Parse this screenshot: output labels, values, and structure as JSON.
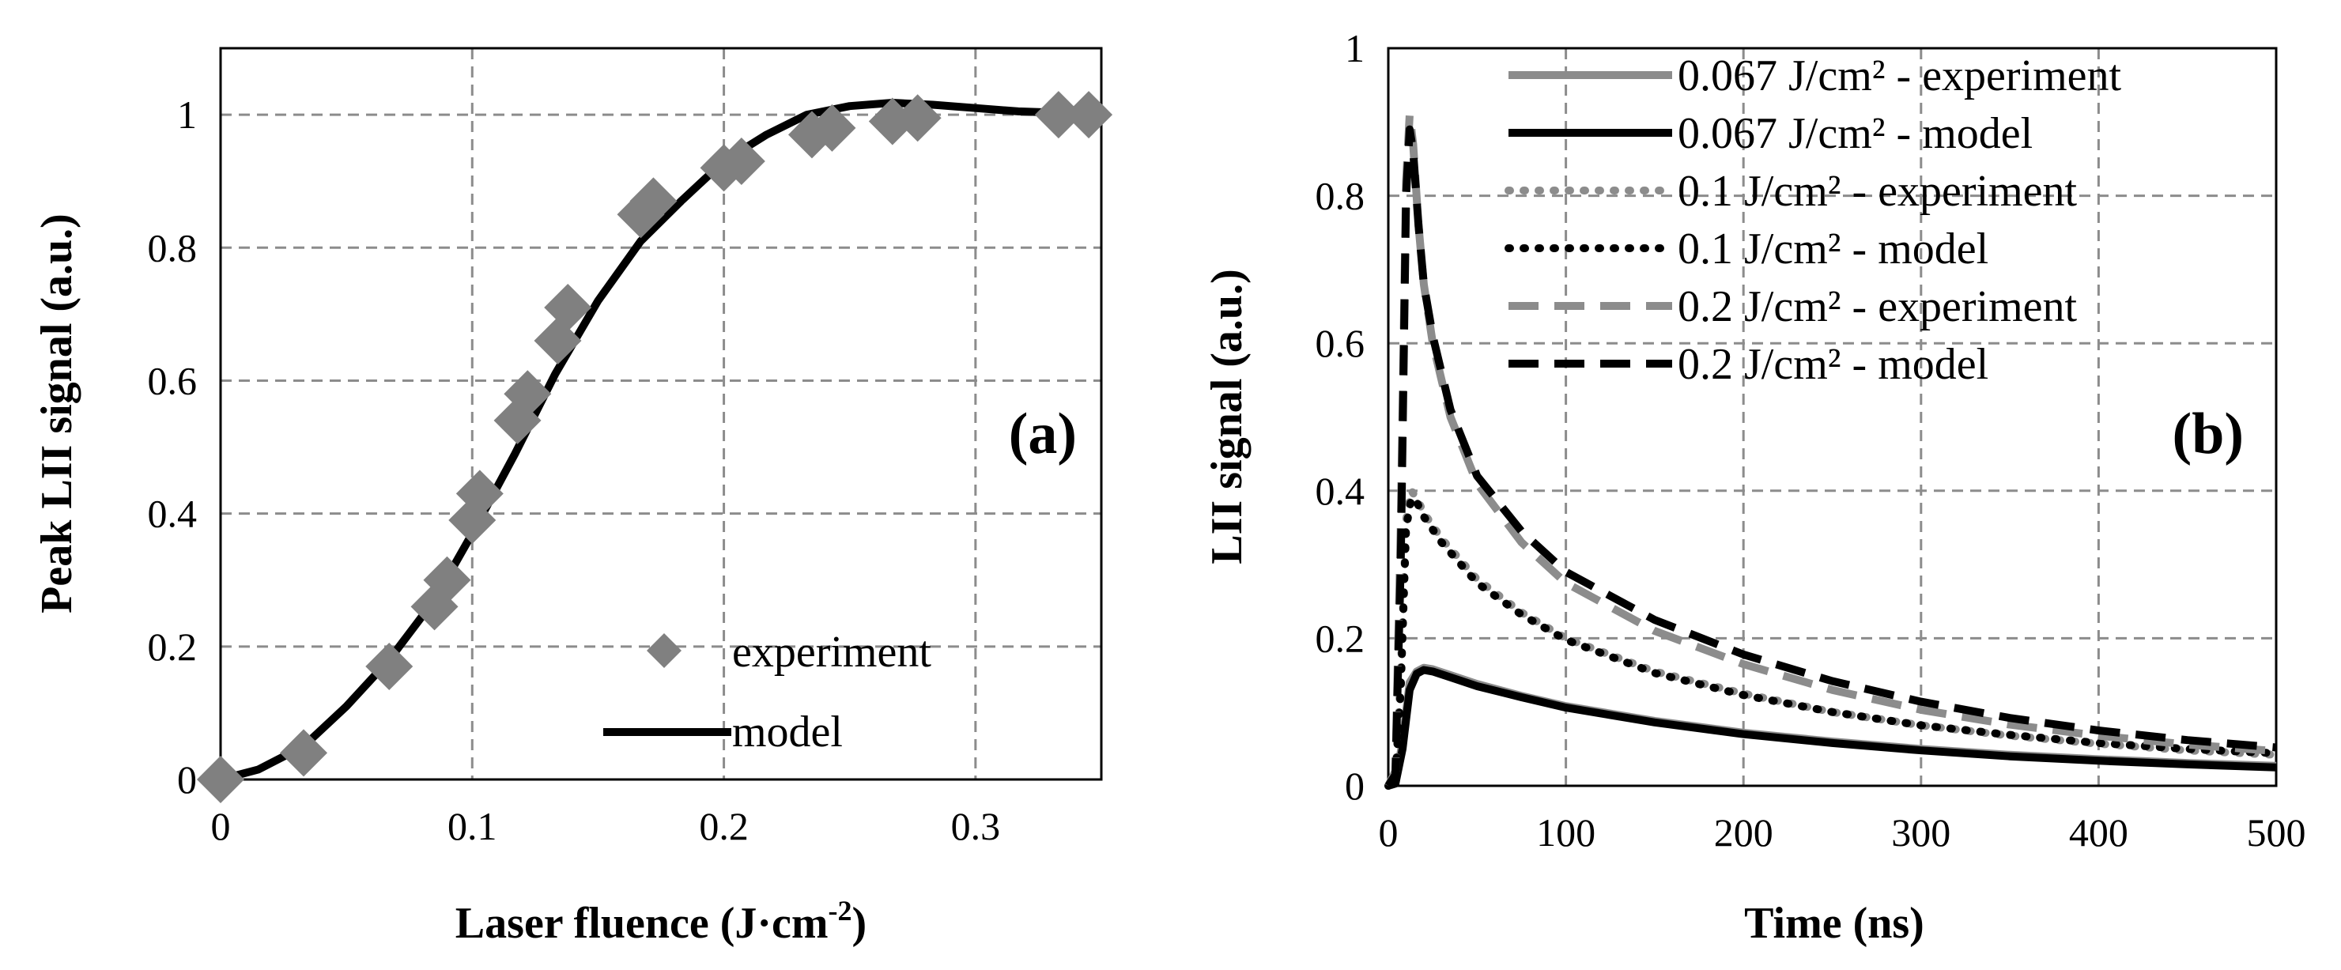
{
  "chart_data": [
    {
      "type": "scatter",
      "panel_label": "(a)",
      "xlabel": "Laser fluence (J·cm",
      "xlabel_sup": "-2",
      "xlabel_close": ")",
      "ylabel": "Peak LII signal (a.u.)",
      "xlim": [
        0,
        0.35
      ],
      "ylim": [
        0,
        1.1
      ],
      "xticks": [
        "0",
        "0.1",
        "0.2",
        "0.3"
      ],
      "yticks": [
        "0",
        "0.2",
        "0.4",
        "0.6",
        "0.8",
        "1"
      ],
      "grid": true,
      "legend_position": "bottom-right",
      "series": [
        {
          "name": "experiment",
          "kind": "markers",
          "marker": "diamond",
          "color": "#808080",
          "x": [
            0.0,
            0.033,
            0.067,
            0.085,
            0.09,
            0.1,
            0.103,
            0.118,
            0.122,
            0.134,
            0.138,
            0.167,
            0.172,
            0.2,
            0.207,
            0.235,
            0.243,
            0.267,
            0.277,
            0.333,
            0.345
          ],
          "y": [
            0.0,
            0.04,
            0.17,
            0.26,
            0.3,
            0.39,
            0.43,
            0.54,
            0.58,
            0.66,
            0.71,
            0.85,
            0.87,
            0.92,
            0.93,
            0.97,
            0.98,
            0.99,
            0.995,
            1.0,
            1.0
          ]
        },
        {
          "name": "model",
          "kind": "line",
          "color": "#000000",
          "x": [
            0.0,
            0.015,
            0.033,
            0.05,
            0.067,
            0.085,
            0.1,
            0.117,
            0.133,
            0.15,
            0.167,
            0.183,
            0.2,
            0.217,
            0.233,
            0.25,
            0.267,
            0.283,
            0.3,
            0.317,
            0.333,
            0.345
          ],
          "y": [
            0.0,
            0.015,
            0.05,
            0.11,
            0.18,
            0.27,
            0.37,
            0.49,
            0.61,
            0.72,
            0.81,
            0.87,
            0.93,
            0.97,
            1.0,
            1.013,
            1.018,
            1.015,
            1.01,
            1.005,
            1.003,
            1.002
          ]
        }
      ]
    },
    {
      "type": "line",
      "panel_label": "(b)",
      "xlabel": "Time (ns)",
      "ylabel": "LII signal (a.u.)",
      "xlim": [
        0,
        500
      ],
      "ylim": [
        0,
        1
      ],
      "xticks": [
        "0",
        "100",
        "200",
        "300",
        "400",
        "500"
      ],
      "yticks": [
        "0",
        "0.2",
        "0.4",
        "0.6",
        "0.8",
        "1"
      ],
      "grid": true,
      "legend_position": "top-right",
      "series": [
        {
          "name": "0.067 J/cm² - experiment",
          "color": "#8c8c8c",
          "style": "solid",
          "x": [
            0,
            4,
            8,
            12,
            16,
            20,
            25,
            35,
            50,
            75,
            100,
            150,
            200,
            250,
            300,
            350,
            400,
            450,
            500
          ],
          "y": [
            0,
            0.005,
            0.06,
            0.14,
            0.155,
            0.16,
            0.158,
            0.15,
            0.138,
            0.122,
            0.108,
            0.088,
            0.072,
            0.06,
            0.05,
            0.042,
            0.036,
            0.031,
            0.027
          ]
        },
        {
          "name": "0.067 J/cm² - model",
          "color": "#000000",
          "style": "solid",
          "x": [
            0,
            4,
            8,
            12,
            16,
            20,
            25,
            35,
            50,
            75,
            100,
            150,
            200,
            250,
            300,
            350,
            400,
            450,
            500
          ],
          "y": [
            0,
            0.003,
            0.05,
            0.13,
            0.152,
            0.157,
            0.155,
            0.147,
            0.135,
            0.12,
            0.106,
            0.086,
            0.07,
            0.058,
            0.048,
            0.04,
            0.034,
            0.029,
            0.025
          ]
        },
        {
          "name": "0.1 J/cm² - experiment",
          "color": "#8c8c8c",
          "style": "dotted",
          "x": [
            0,
            4,
            7,
            10,
            13,
            16,
            20,
            30,
            50,
            75,
            100,
            150,
            200,
            250,
            300,
            350,
            400,
            450,
            500
          ],
          "y": [
            0,
            0.01,
            0.15,
            0.36,
            0.4,
            0.39,
            0.37,
            0.335,
            0.28,
            0.235,
            0.2,
            0.155,
            0.125,
            0.1,
            0.082,
            0.068,
            0.057,
            0.048,
            0.042
          ]
        },
        {
          "name": "0.1 J/cm² - model",
          "color": "#000000",
          "style": "dotted",
          "x": [
            0,
            4,
            7,
            10,
            13,
            16,
            20,
            30,
            50,
            75,
            100,
            150,
            200,
            250,
            300,
            350,
            400,
            450,
            500
          ],
          "y": [
            0,
            0.008,
            0.13,
            0.35,
            0.39,
            0.385,
            0.365,
            0.33,
            0.275,
            0.232,
            0.198,
            0.153,
            0.123,
            0.1,
            0.082,
            0.069,
            0.058,
            0.05,
            0.044
          ]
        },
        {
          "name": "0.2 J/cm² - experiment",
          "color": "#8c8c8c",
          "style": "dashed",
          "x": [
            0,
            4,
            7,
            10,
            12,
            14,
            17,
            20,
            25,
            35,
            50,
            75,
            100,
            150,
            200,
            250,
            300,
            350,
            400,
            450,
            500
          ],
          "y": [
            0,
            0.02,
            0.35,
            0.82,
            0.91,
            0.87,
            0.76,
            0.68,
            0.6,
            0.5,
            0.41,
            0.33,
            0.275,
            0.21,
            0.165,
            0.13,
            0.103,
            0.083,
            0.068,
            0.056,
            0.047
          ]
        },
        {
          "name": "0.2 J/cm² - model",
          "color": "#000000",
          "style": "dashed",
          "x": [
            0,
            4,
            7,
            10,
            12,
            14,
            17,
            20,
            25,
            35,
            50,
            75,
            100,
            150,
            200,
            250,
            300,
            350,
            400,
            450,
            500
          ],
          "y": [
            0,
            0.015,
            0.3,
            0.8,
            0.89,
            0.86,
            0.76,
            0.68,
            0.61,
            0.51,
            0.42,
            0.345,
            0.29,
            0.225,
            0.178,
            0.142,
            0.114,
            0.092,
            0.075,
            0.062,
            0.052
          ]
        }
      ]
    }
  ]
}
